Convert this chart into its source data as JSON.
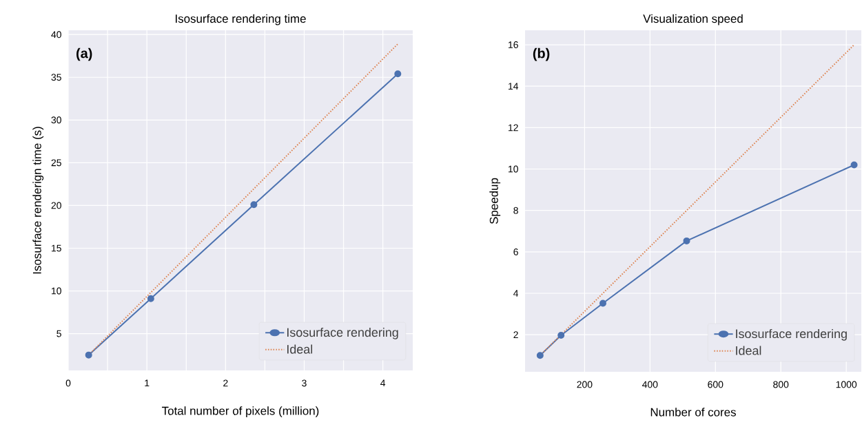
{
  "chart_data": [
    {
      "type": "line",
      "title": "Isosurface rendering time",
      "xlabel": "Total number of pixels (million)",
      "ylabel": "Isosurface renderign time (s)",
      "annotations": [
        "(a)"
      ],
      "xlim": [
        0,
        4.38
      ],
      "ylim": [
        0.7,
        40.5
      ],
      "xticks": [
        0,
        {
          "value": 0.5,
          "label": null
        },
        1,
        {
          "value": 1.5,
          "label": null
        },
        2,
        {
          "value": 2.5,
          "label": null
        },
        3,
        {
          "value": 3.5,
          "label": null
        },
        4
      ],
      "yticks": [
        5,
        10,
        15,
        20,
        25,
        30,
        35,
        40
      ],
      "grid": true,
      "legend": "bottom right",
      "series": [
        {
          "name": "Isosurface rendering",
          "color": "#4c72b0",
          "x": [
            0.26,
            1.05,
            2.36,
            4.19
          ],
          "values": [
            2.5,
            9.1,
            20.1,
            35.4
          ],
          "marker": "circle",
          "line_style": "solid"
        },
        {
          "name": "Ideal",
          "color": "#dd8452",
          "x": [
            0.26,
            4.19
          ],
          "values": [
            2.5,
            38.9
          ],
          "marker": "none",
          "line_style": "dotted"
        }
      ]
    },
    {
      "type": "line",
      "title": "Visualization speed",
      "xlabel": "Number of cores",
      "ylabel": "Speedup",
      "annotations": [
        "(b)"
      ],
      "xlim": [
        18,
        1046
      ],
      "ylim": [
        0.21,
        16.7
      ],
      "xticks": [
        200,
        400,
        600,
        800,
        1000
      ],
      "yticks": [
        2,
        4,
        6,
        8,
        10,
        12,
        14,
        16
      ],
      "grid": true,
      "legend": "bottom right",
      "series": [
        {
          "name": "Isosurface rendering",
          "color": "#4c72b0",
          "x": [
            64,
            128,
            256,
            512,
            1024
          ],
          "values": [
            1.0,
            1.97,
            3.52,
            6.53,
            10.2
          ],
          "marker": "circle",
          "line_style": "solid"
        },
        {
          "name": "Ideal",
          "color": "#dd8452",
          "x": [
            64,
            1024
          ],
          "values": [
            1,
            16
          ],
          "marker": "none",
          "line_style": "dotted"
        }
      ]
    }
  ]
}
